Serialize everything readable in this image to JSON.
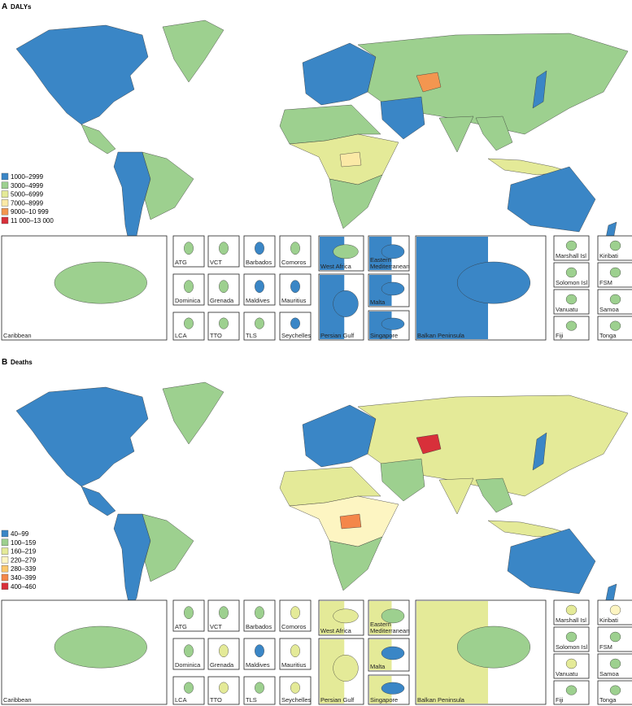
{
  "panels": [
    {
      "letter": "A",
      "title": "DALYs",
      "legend": [
        {
          "label": "1000–2999",
          "color": "#3a86c6"
        },
        {
          "label": "3000–4999",
          "color": "#9dd08f"
        },
        {
          "label": "5000–6999",
          "color": "#e4ea98"
        },
        {
          "label": "7000–8999",
          "color": "#fbe9a6"
        },
        {
          "label": "9000–10 999",
          "color": "#f39650"
        },
        {
          "label": "11 000–13 000",
          "color": "#d8303a"
        }
      ],
      "insets": [
        "Caribbean",
        "ATG",
        "VCT",
        "Barbados",
        "Comoros",
        "Dominica",
        "Grenada",
        "Maldives",
        "Mauritius",
        "LCA",
        "TTO",
        "TLS",
        "Seychelles",
        "West Africa",
        "Persian Gulf",
        "Eastern Mediterranean",
        "Malta",
        "Singapore",
        "Balkan Peninsula",
        "Marshall Isl",
        "Kiribati",
        "Solomon Isl",
        "FSM",
        "Vanuatu",
        "Samoa",
        "Fiji",
        "Tonga"
      ]
    },
    {
      "letter": "B",
      "title": "Deaths",
      "legend": [
        {
          "label": "40–99",
          "color": "#3a86c6"
        },
        {
          "label": "100–159",
          "color": "#9dd08f"
        },
        {
          "label": "160–219",
          "color": "#e4ea98"
        },
        {
          "label": "220–279",
          "color": "#fdf5c2"
        },
        {
          "label": "280–339",
          "color": "#fcc76a"
        },
        {
          "label": "340–399",
          "color": "#f4874a"
        },
        {
          "label": "400–460",
          "color": "#d8303a"
        }
      ],
      "insets": [
        "Caribbean",
        "ATG",
        "VCT",
        "Barbados",
        "Comoros",
        "Dominica",
        "Grenada",
        "Maldives",
        "Mauritius",
        "LCA",
        "TTO",
        "TLS",
        "Seychelles",
        "West Africa",
        "Persian Gulf",
        "Eastern Mediterranean",
        "Malta",
        "Singapore",
        "Balkan Peninsula",
        "Marshall Isl",
        "Kiribati",
        "Solomon Isl",
        "FSM",
        "Vanuatu",
        "Samoa",
        "Fiji",
        "Tonga"
      ]
    }
  ]
}
